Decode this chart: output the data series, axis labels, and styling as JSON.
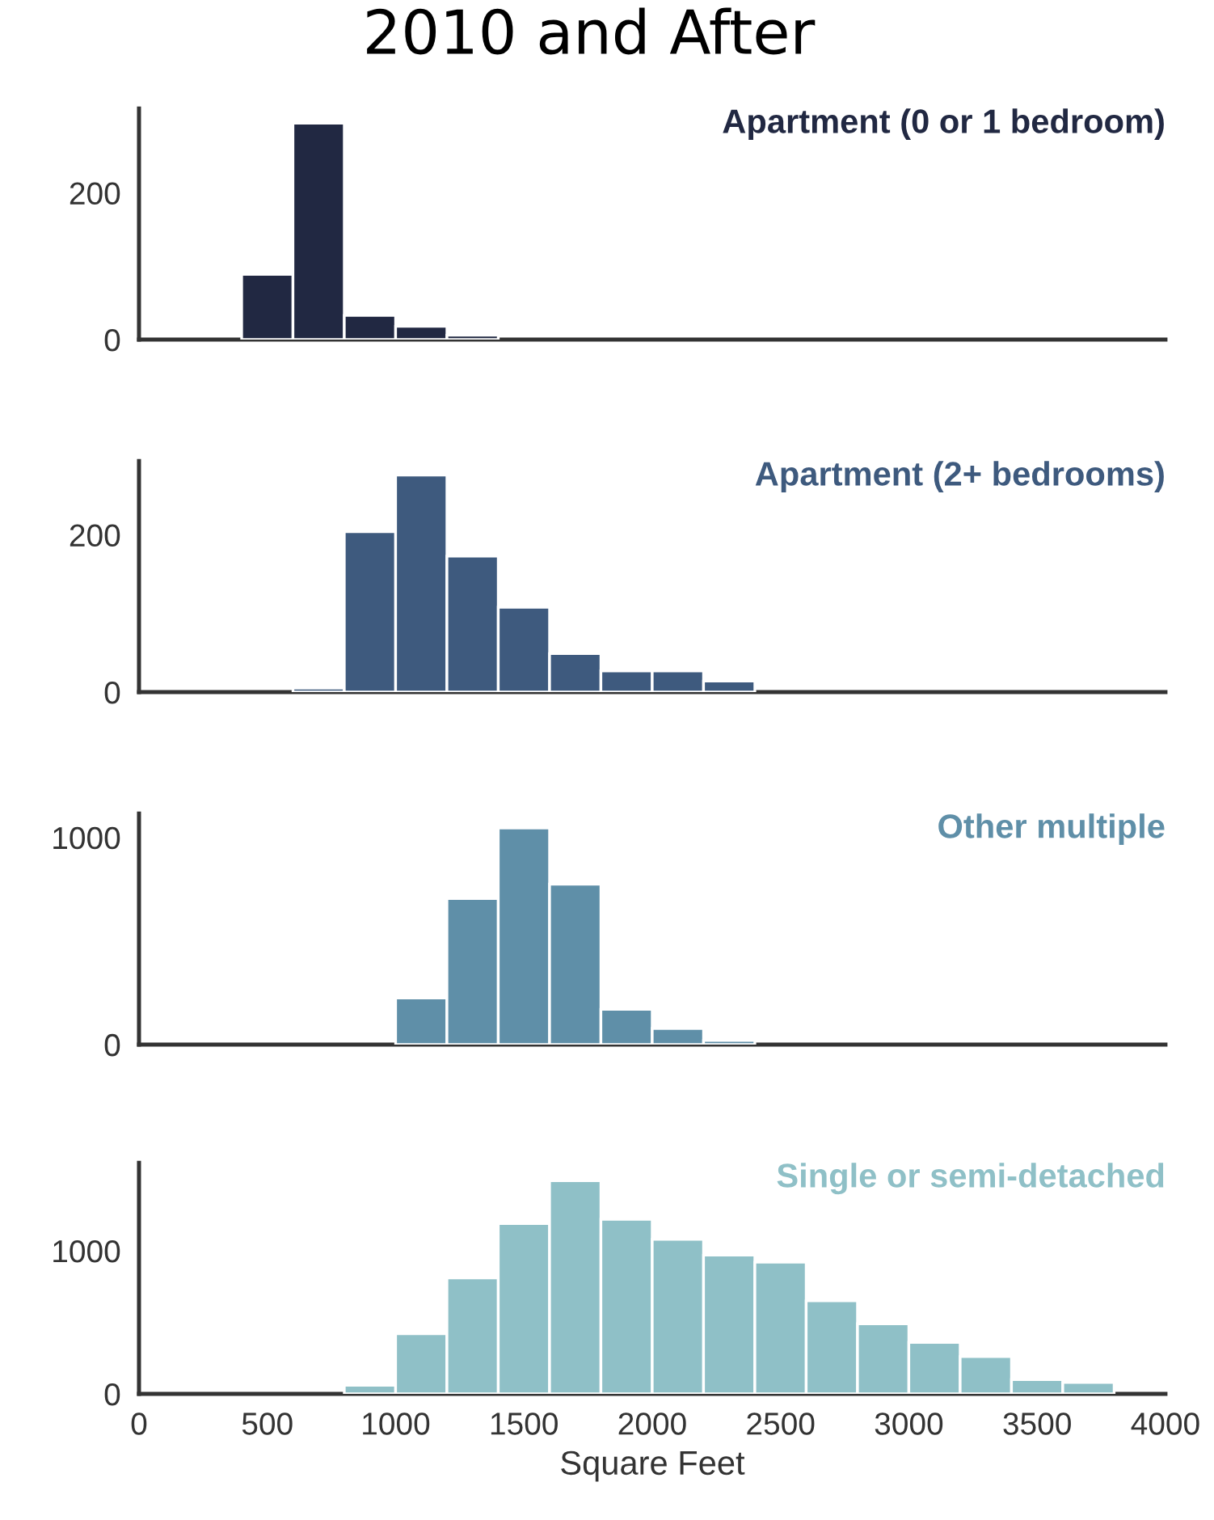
{
  "chart_data": [
    {
      "type": "histogram",
      "title": "2010 and After",
      "bins": [
        400,
        600,
        800,
        1000,
        1200,
        1400
      ],
      "series": [
        {
          "name": "Apartment (0 or 1 bedroom)",
          "color": "#212842",
          "values": [
            89,
            295,
            33,
            18,
            6
          ]
        }
      ],
      "xlim": [
        0,
        4000
      ],
      "xticks": [
        0,
        500,
        1000,
        1500,
        2000,
        2500,
        3000,
        3500,
        4000
      ],
      "ylim": [
        0,
        315
      ],
      "yticks": [
        0,
        200
      ],
      "tick_labels": "y",
      "grid": false
    },
    {
      "type": "histogram",
      "bins": [
        600,
        800,
        1000,
        1200,
        1400,
        1600,
        1800,
        2000,
        2200,
        2400
      ],
      "series": [
        {
          "name": "Apartment (2+ bedrooms)",
          "color": "#3e5a7e",
          "values": [
            5,
            204,
            276,
            173,
            108,
            49,
            27,
            27,
            14
          ]
        }
      ],
      "xlim": [
        0,
        4000
      ],
      "xticks": [
        0,
        500,
        1000,
        1500,
        2000,
        2500,
        3000,
        3500,
        4000
      ],
      "ylim": [
        0,
        294
      ],
      "yticks": [
        0,
        200
      ],
      "tick_labels": "y",
      "grid": false
    },
    {
      "type": "histogram",
      "bins": [
        1000,
        1200,
        1400,
        1600,
        1800,
        2000,
        2200,
        2400
      ],
      "series": [
        {
          "name": "Other multiple",
          "color": "#5f8fa8",
          "values": [
            225,
            705,
            1046,
            775,
            170,
            78,
            20
          ]
        }
      ],
      "xlim": [
        0,
        4000
      ],
      "xticks": [
        0,
        500,
        1000,
        1500,
        2000,
        2500,
        3000,
        3500,
        4000
      ],
      "ylim": [
        0,
        1116
      ],
      "yticks": [
        0,
        1000
      ],
      "tick_labels": "y",
      "grid": false
    },
    {
      "type": "histogram",
      "xlabel": "Square Feet",
      "bins": [
        800,
        1000,
        1200,
        1400,
        1600,
        1800,
        2000,
        2200,
        2400,
        2600,
        2800,
        3000,
        3200,
        3400,
        3600,
        3800
      ],
      "series": [
        {
          "name": "Single or semi-detached",
          "color": "#8fc0c7",
          "values": [
            60,
            420,
            810,
            1190,
            1490,
            1220,
            1080,
            970,
            920,
            650,
            490,
            360,
            260,
            100,
            80
          ]
        }
      ],
      "xlim": [
        0,
        4000
      ],
      "xticks": [
        0,
        500,
        1000,
        1500,
        2000,
        2500,
        3000,
        3500,
        4000
      ],
      "ylim": [
        0,
        1615
      ],
      "yticks": [
        0,
        1000
      ],
      "grid": false
    }
  ]
}
